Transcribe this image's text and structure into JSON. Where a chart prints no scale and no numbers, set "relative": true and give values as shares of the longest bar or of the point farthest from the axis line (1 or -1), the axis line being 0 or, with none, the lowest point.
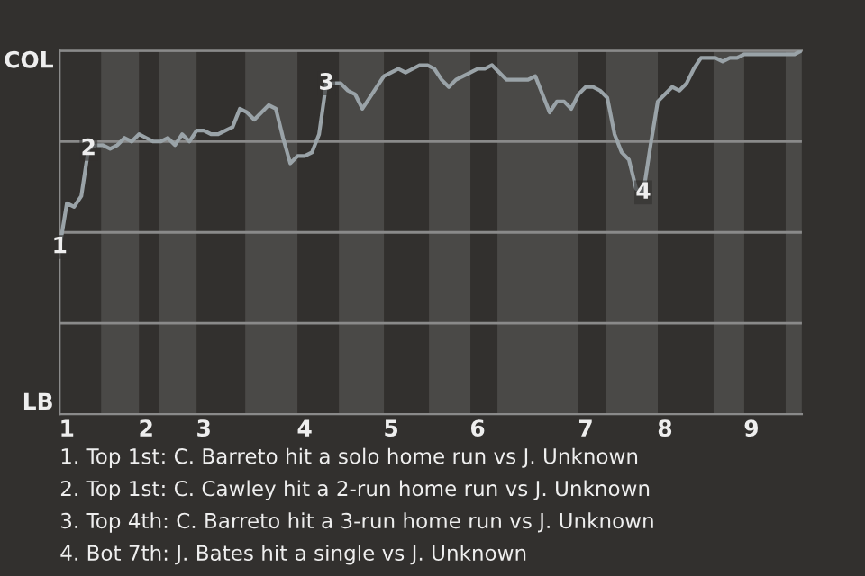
{
  "chart_data": {
    "type": "line",
    "relative": true,
    "categories": [
      null,
      "1",
      null,
      null,
      null,
      null,
      null,
      null,
      null,
      null,
      null,
      null,
      "2",
      null,
      null,
      null,
      null,
      null,
      null,
      null,
      "3",
      null,
      null,
      null,
      null,
      null,
      null,
      null,
      null,
      null,
      null,
      null,
      null,
      null,
      "4",
      null,
      null,
      null,
      null,
      null,
      null,
      null,
      null,
      null,
      null,
      null,
      "5",
      null,
      null,
      null,
      null,
      null,
      null,
      null,
      null,
      null,
      null,
      null,
      "6",
      null,
      null,
      null,
      null,
      null,
      null,
      null,
      null,
      null,
      null,
      null,
      null,
      null,
      null,
      "7",
      null,
      null,
      null,
      null,
      null,
      null,
      null,
      null,
      null,
      null,
      "8",
      null,
      null,
      null,
      null,
      null,
      null,
      null,
      null,
      null,
      null,
      null,
      "9",
      null,
      null,
      null,
      null,
      null,
      null,
      null
    ],
    "series": [
      {
        "color": "#9aa3a8",
        "values": [
          0.46,
          0.58,
          0.57,
          0.6,
          0.73,
          0.74,
          0.74,
          0.73,
          0.74,
          0.76,
          0.75,
          0.77,
          0.76,
          0.75,
          0.75,
          0.76,
          0.74,
          0.77,
          0.75,
          0.78,
          0.78,
          0.77,
          0.77,
          0.78,
          0.79,
          0.84,
          0.83,
          0.81,
          0.83,
          0.85,
          0.84,
          0.76,
          0.69,
          0.71,
          0.71,
          0.72,
          0.77,
          0.91,
          0.91,
          0.91,
          0.89,
          0.88,
          0.84,
          0.87,
          0.9,
          0.93,
          0.94,
          0.95,
          0.94,
          0.95,
          0.96,
          0.96,
          0.95,
          0.92,
          0.9,
          0.92,
          0.93,
          0.94,
          0.95,
          0.95,
          0.96,
          0.94,
          0.92,
          0.92,
          0.92,
          0.92,
          0.93,
          0.88,
          0.83,
          0.86,
          0.86,
          0.84,
          0.88,
          0.9,
          0.9,
          0.89,
          0.87,
          0.77,
          0.72,
          0.7,
          0.62,
          0.61,
          0.74,
          0.86,
          0.88,
          0.9,
          0.89,
          0.91,
          0.95,
          0.98,
          0.98,
          0.98,
          0.97,
          0.98,
          0.98,
          0.99,
          0.99,
          0.99,
          0.99,
          0.99,
          0.99,
          0.99,
          0.99,
          1.0
        ]
      }
    ],
    "ref_lines": [
      {
        "axis": "y",
        "value": 0.25,
        "color": "#8a8a8a"
      },
      {
        "axis": "y",
        "value": 0.5,
        "color": "#8a8a8a"
      },
      {
        "axis": "y",
        "value": 0.75,
        "color": "#8a8a8a"
      },
      {
        "axis": "y",
        "value": 1.0,
        "color": "#8a8a8a"
      }
    ],
    "annotations": [
      {
        "text": "1",
        "y": 0.46
      },
      {
        "text": "2",
        "y": 0.73
      },
      {
        "text": "3",
        "y": 0.91
      },
      {
        "text": "4",
        "y": 0.61
      },
      "COL",
      "LB",
      "1. Top 1st: C. Barreto hit a solo home run vs J. Unknown",
      "2. Top 1st: C. Cawley hit a 2-run home run vs J. Unknown",
      "3. Top 4th: C. Barreto hit a 3-run home run vs J. Unknown",
      "4. Bot 7th: J. Bates hit a single vs J. Unknown"
    ]
  }
}
